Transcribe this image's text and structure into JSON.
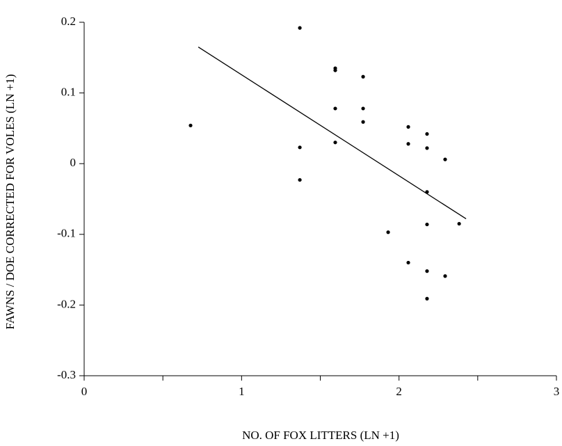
{
  "chart_data": {
    "type": "scatter",
    "x_label": "NO. OF FOX LITTERS (LN +1)",
    "y_label": "FAWNS / DOE CORRECTED FOR VOLES (LN +1)",
    "x": [
      0.676,
      1.37,
      1.37,
      1.37,
      1.595,
      1.595,
      1.595,
      1.595,
      1.772,
      1.772,
      1.772,
      1.931,
      2.059,
      2.059,
      2.059,
      2.178,
      2.178,
      2.178,
      2.178,
      2.178,
      2.178,
      2.293,
      2.293,
      2.382
    ],
    "series": [
      {
        "name": "Observations",
        "color": "#000000",
        "values": [
          0.054,
          0.192,
          0.023,
          -0.023,
          0.135,
          0.132,
          0.078,
          0.03,
          0.123,
          0.078,
          0.059,
          -0.097,
          0.052,
          0.028,
          -0.14,
          0.042,
          0.022,
          -0.04,
          -0.086,
          -0.152,
          -0.191,
          0.006,
          -0.159,
          -0.085
        ]
      }
    ],
    "trend_line": {
      "x": [
        0.725,
        2.426
      ],
      "y": [
        0.165,
        -0.078
      ],
      "color": "#000000"
    },
    "xlim": [
      0,
      3
    ],
    "xticks": [
      0,
      1,
      2,
      3
    ],
    "xminorticks": [
      0.5,
      1.5,
      2.5
    ],
    "ylim": [
      -0.3,
      0.2
    ],
    "yticks": [
      -0.3,
      -0.2,
      -0.1,
      0,
      0.1,
      0.2
    ],
    "grid": false
  }
}
